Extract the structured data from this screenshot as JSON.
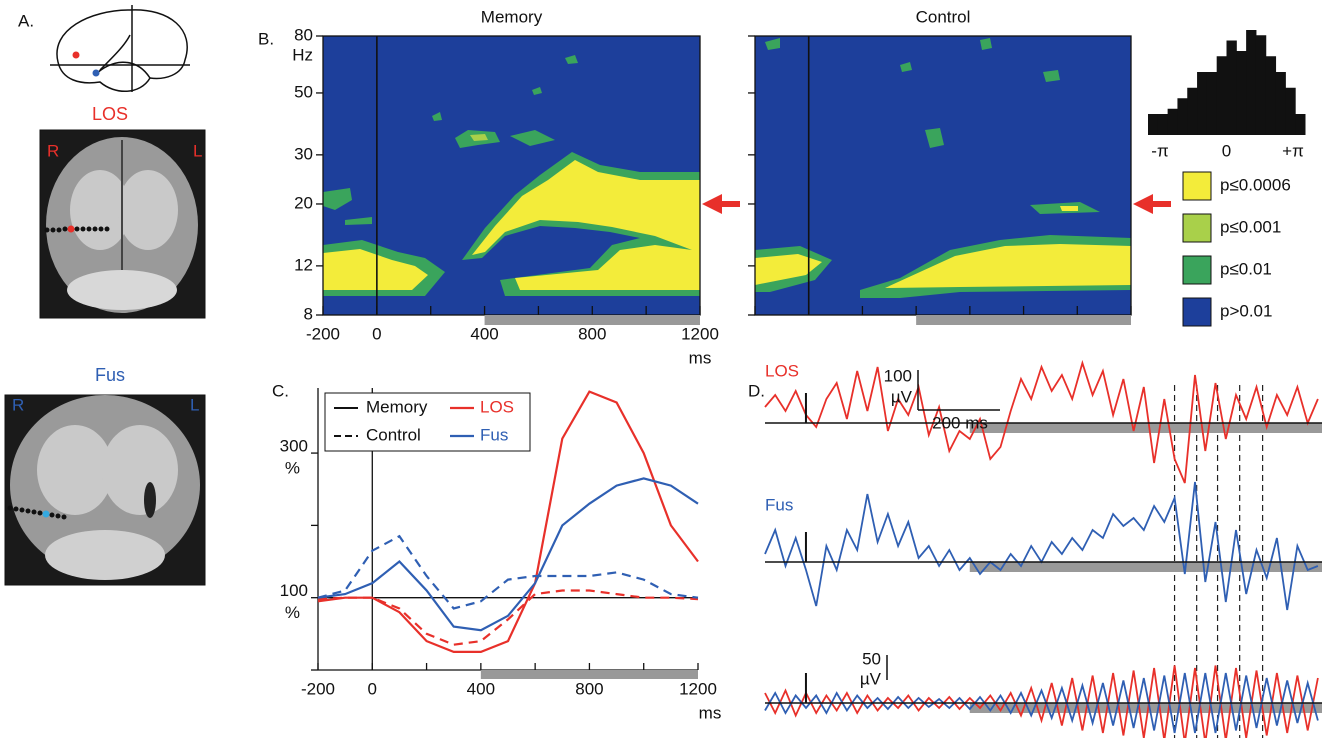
{
  "panel_labels": {
    "a": "A.",
    "b": "B.",
    "c": "C.",
    "d": "D."
  },
  "panel_a": {
    "los_label": "LOS",
    "fus_label": "Fus",
    "right_side": "R",
    "left_side": "L"
  },
  "chart_data": [
    {
      "type": "heatmap",
      "title": "Memory",
      "ylabel": "Hz",
      "xlabel": "ms",
      "log_y": true,
      "ylim": [
        8,
        80
      ],
      "yticks": [
        8,
        12,
        20,
        30,
        50,
        80
      ],
      "xlim": [
        -200,
        1200
      ],
      "xticks": [
        -200,
        0,
        400,
        800,
        1200
      ],
      "xminor_ticks": [
        200,
        600,
        1000
      ],
      "shaded_interval": [
        400,
        1200
      ],
      "legend": [
        {
          "label": "p≤0.0006",
          "color": "#f3ec3a"
        },
        {
          "label": "p≤0.001",
          "color": "#a9d04a"
        },
        {
          "label": "p≤0.01",
          "color": "#3aa45c"
        },
        {
          "label": "p>0.01",
          "color": "#1d3f9b"
        }
      ]
    },
    {
      "type": "heatmap",
      "title": "Control"
    },
    {
      "type": "histogram",
      "color": "#111111",
      "bins": [
        -3.1416,
        -2.7489,
        -2.3562,
        -1.9635,
        -1.5708,
        -1.1781,
        -0.7854,
        -0.3927,
        0,
        0.3927,
        0.7854,
        1.1781,
        1.5708,
        1.9635,
        2.3562,
        2.7489,
        3.1416
      ],
      "values": [
        20,
        20,
        25,
        35,
        45,
        60,
        60,
        75,
        90,
        80,
        100,
        95,
        75,
        60,
        45,
        20
      ],
      "ylim": [
        0,
        100
      ],
      "xlim": [
        -3.1416,
        3.1416
      ],
      "xticks": [
        {
          "value": -3.1416,
          "label": "-π"
        },
        0,
        {
          "value": 3.1416,
          "label": "+π"
        }
      ]
    },
    {
      "type": "line",
      "xlabel": "ms",
      "ylabel": "%",
      "x": [
        -200,
        -100,
        0,
        100,
        200,
        300,
        400,
        500,
        600,
        700,
        800,
        900,
        1000,
        1100,
        1200
      ],
      "xlim": [
        -200,
        1200
      ],
      "xticks": [
        -200,
        0,
        400,
        800,
        1200
      ],
      "xminor_ticks": [
        200,
        600,
        1000
      ],
      "ylim": [
        0,
        390
      ],
      "yticks": [
        100,
        300
      ],
      "yminor_ticks": [
        0,
        200
      ],
      "shaded_interval": [
        400,
        1200
      ],
      "series": [
        {
          "condition": "Memory",
          "region": "LOS",
          "color": "#e8302a",
          "dashed": false,
          "values": [
            95,
            100,
            100,
            80,
            40,
            25,
            25,
            40,
            120,
            320,
            385,
            370,
            300,
            200,
            150
          ]
        },
        {
          "condition": "Control",
          "region": "LOS",
          "color": "#e8302a",
          "dashed": true,
          "values": [
            98,
            100,
            100,
            85,
            50,
            35,
            40,
            70,
            105,
            110,
            110,
            105,
            100,
            100,
            98
          ]
        },
        {
          "condition": "Memory",
          "region": "Fus",
          "color": "#2f5fb3",
          "dashed": false,
          "values": [
            100,
            105,
            120,
            150,
            110,
            60,
            55,
            75,
            120,
            200,
            230,
            255,
            265,
            255,
            230
          ]
        },
        {
          "condition": "Control",
          "region": "Fus",
          "color": "#2f5fb3",
          "dashed": true,
          "values": [
            100,
            110,
            165,
            185,
            130,
            85,
            95,
            125,
            130,
            130,
            130,
            135,
            125,
            105,
            100
          ]
        }
      ]
    },
    {
      "type": "line",
      "x": [
        -100,
        -75,
        -50,
        -25,
        0,
        25,
        50,
        75,
        100,
        125,
        150,
        175,
        200,
        225,
        250,
        275,
        300,
        325,
        350,
        375,
        400,
        425,
        450,
        475,
        500,
        525,
        550,
        575,
        600,
        625,
        650,
        675,
        700,
        725,
        750,
        775,
        800,
        825,
        850,
        875,
        900,
        925,
        950,
        975,
        1000,
        1025,
        1050,
        1075,
        1100,
        1125,
        1150,
        1175,
        1200,
        1225,
        1250
      ],
      "xlim": [
        -100,
        1260
      ],
      "shaded_interval": [
        400,
        1260
      ],
      "event_times": [
        900,
        954,
        1005,
        1059,
        1115
      ],
      "scale_bars": {
        "top_amplitude": "100",
        "top_unit": "µV",
        "time": "200 ms",
        "bottom_amplitude": "50",
        "bottom_unit": "µV"
      },
      "series": [
        {
          "name": "LOS",
          "color": "#e8302a",
          "values": [
            40,
            70,
            30,
            80,
            20,
            -10,
            60,
            100,
            10,
            130,
            30,
            140,
            -20,
            60,
            20,
            90,
            -30,
            40,
            -70,
            -20,
            -40,
            10,
            -90,
            -60,
            30,
            110,
            60,
            140,
            80,
            120,
            60,
            150,
            70,
            130,
            20,
            110,
            -20,
            90,
            -100,
            60,
            -90,
            -150,
            120,
            -70,
            100,
            -40,
            70,
            10,
            90,
            -10,
            70,
            20,
            90,
            0,
            60
          ]
        },
        {
          "name": "Fus",
          "color": "#2f5fb3",
          "values": [
            20,
            80,
            -10,
            60,
            -20,
            -110,
            40,
            -20,
            80,
            30,
            170,
            50,
            120,
            40,
            100,
            10,
            40,
            -10,
            30,
            -20,
            10,
            -30,
            0,
            -20,
            20,
            -10,
            40,
            0,
            50,
            20,
            60,
            30,
            80,
            60,
            120,
            90,
            110,
            80,
            140,
            100,
            160,
            -30,
            200,
            -50,
            100,
            -100,
            80,
            -80,
            30,
            -40,
            60,
            -120,
            40,
            -20,
            -10
          ]
        },
        {
          "color": "#e8302a",
          "values": [
            20,
            -20,
            25,
            -25,
            20,
            -20,
            15,
            -15,
            20,
            -20,
            15,
            -15,
            10,
            -10,
            15,
            -15,
            10,
            -10,
            12,
            -12,
            10,
            -10,
            15,
            -15,
            20,
            -25,
            30,
            -35,
            40,
            -45,
            50,
            -55,
            55,
            -60,
            60,
            -65,
            65,
            -70,
            70,
            -75,
            75,
            -80,
            70,
            -80,
            75,
            -75,
            70,
            -70,
            65,
            -65,
            60,
            -60,
            55,
            -55,
            50
          ]
        },
        {
          "color": "#2f5fb3",
          "values": [
            -15,
            20,
            -20,
            15,
            -10,
            15,
            -20,
            20,
            -15,
            15,
            -10,
            10,
            -12,
            12,
            -10,
            10,
            -8,
            8,
            -10,
            10,
            -12,
            12,
            -15,
            15,
            -20,
            20,
            -25,
            25,
            -30,
            30,
            -35,
            35,
            -40,
            40,
            -45,
            45,
            -50,
            50,
            -55,
            55,
            -60,
            60,
            -60,
            60,
            -60,
            60,
            -55,
            55,
            -50,
            50,
            -45,
            45,
            -40,
            40,
            -35
          ]
        }
      ]
    }
  ]
}
